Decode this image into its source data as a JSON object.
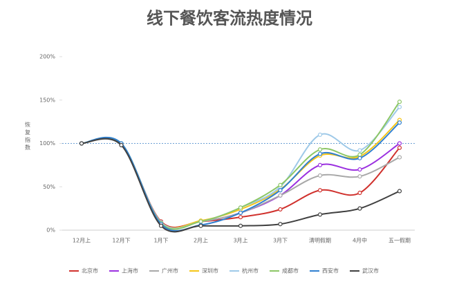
{
  "chart_data": {
    "type": "line",
    "title": "线下餐饮客流热度情况",
    "y_label": "恢复指数",
    "categories": [
      "12月上",
      "12月下",
      "1月下",
      "2月上",
      "3月上",
      "3月下",
      "清明假期",
      "4月中",
      "五一假期"
    ],
    "ylim": [
      0,
      200
    ],
    "yticks": [
      {
        "value": 0,
        "label": "0%"
      },
      {
        "value": 50,
        "label": "50%"
      },
      {
        "value": 100,
        "label": "100%"
      },
      {
        "value": 150,
        "label": "150%"
      },
      {
        "value": 200,
        "label": "200%"
      }
    ],
    "reference_line": 100,
    "series": [
      {
        "name": "北京市",
        "color": "#d0312d",
        "values": [
          100,
          99,
          10,
          10,
          15,
          24,
          46,
          43,
          95
        ]
      },
      {
        "name": "上海市",
        "color": "#9b30e0",
        "values": [
          100,
          99,
          9,
          10,
          20,
          40,
          75,
          70,
          100
        ]
      },
      {
        "name": "广州市",
        "color": "#a8a8a8",
        "values": [
          100,
          98,
          9,
          10,
          20,
          40,
          63,
          62,
          84
        ]
      },
      {
        "name": "深圳市",
        "color": "#f5c518",
        "values": [
          100,
          99,
          9,
          11,
          24,
          47,
          86,
          85,
          127
        ]
      },
      {
        "name": "杭州市",
        "color": "#9ec9e8",
        "values": [
          100,
          100,
          9,
          10,
          26,
          50,
          110,
          92,
          142
        ]
      },
      {
        "name": "成都市",
        "color": "#8cc665",
        "values": [
          100,
          100,
          8,
          10,
          26,
          52,
          93,
          87,
          148
        ]
      },
      {
        "name": "西安市",
        "color": "#2f7fd0",
        "values": [
          100,
          100,
          7,
          6,
          20,
          46,
          88,
          83,
          124
        ]
      },
      {
        "name": "武汉市",
        "color": "#404040",
        "values": [
          100,
          98,
          5,
          5,
          5,
          7,
          18,
          25,
          45
        ]
      }
    ]
  }
}
